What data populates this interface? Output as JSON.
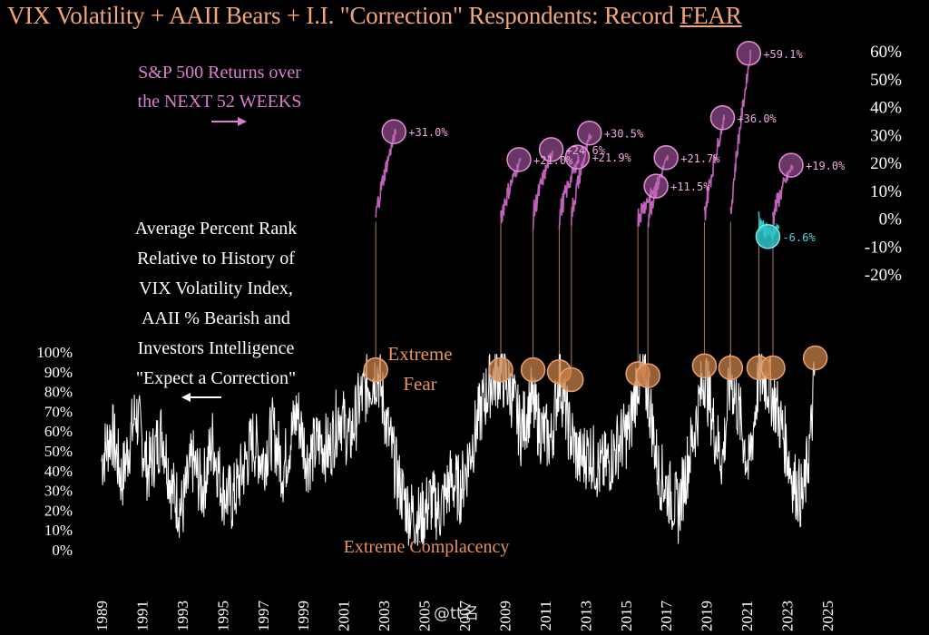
{
  "title": {
    "main": "VIX Volatility + AAII Bears + I.I. \"Correction\" Respondents: Record ",
    "emph": "FEAR"
  },
  "notes": {
    "returns_line1": "S&P 500 Returns over",
    "returns_line2": "the NEXT 52 WEEKS",
    "rank_lines": [
      "Average Percent Rank",
      "Relative to History of",
      "VIX Volatility Index,",
      "AAII % Bearish and",
      "Investors Intelligence",
      "\"Expect a Correction\""
    ],
    "extreme_fear_1": "Extreme",
    "extreme_fear_2": "Fear",
    "extreme_complacency": "Extreme Complacency"
  },
  "watermark": "@tt名",
  "colors": {
    "background": "#000000",
    "rank_line": "#ffffff",
    "returns_line": "#c062b8",
    "negative_return": "#2fc4c9",
    "fear_marker": "#c8804a",
    "label_orange": "#e8935c",
    "label_pink": "#f0a8e0"
  },
  "chart_data": {
    "type": "line",
    "left_axis": {
      "label": "Average Percent Rank",
      "ticks": [
        "100%",
        "90%",
        "80%",
        "70%",
        "60%",
        "50%",
        "40%",
        "30%",
        "20%",
        "10%",
        "0%"
      ],
      "ylim": [
        0,
        100
      ]
    },
    "right_axis": {
      "label": "S&P 500 Returns over the NEXT 52 WEEKS",
      "ticks": [
        "60%",
        "50%",
        "40%",
        "30%",
        "20%",
        "10%",
        "0%",
        "-10%",
        "-20%"
      ],
      "ylim": [
        -20,
        60
      ]
    },
    "x_axis": {
      "ticks": [
        "1989",
        "1991",
        "1993",
        "1995",
        "1997",
        "1999",
        "2001",
        "2003",
        "2005",
        "2007",
        "2009",
        "2011",
        "2013",
        "2015",
        "2017",
        "2019",
        "2021",
        "2023",
        "2025"
      ],
      "xlim": [
        1989,
        2025
      ]
    },
    "extreme_fear_events": [
      {
        "date": 2002.6,
        "rank": 91,
        "return_pct": 31.0,
        "label": "+31.0%"
      },
      {
        "date": 2008.8,
        "rank": 91,
        "return_pct": 21.0,
        "label": "+21.0%"
      },
      {
        "date": 2010.4,
        "rank": 91,
        "return_pct": 24.6,
        "label": "+24.6%"
      },
      {
        "date": 2011.7,
        "rank": 90,
        "return_pct": 21.9,
        "label": "+21.9%"
      },
      {
        "date": 2012.3,
        "rank": 86,
        "return_pct": 30.5,
        "label": "+30.5%"
      },
      {
        "date": 2015.6,
        "rank": 89,
        "return_pct": 11.5,
        "label": "+11.5%"
      },
      {
        "date": 2016.1,
        "rank": 88,
        "return_pct": 21.7,
        "label": "+21.7%"
      },
      {
        "date": 2018.9,
        "rank": 93,
        "return_pct": 36.0,
        "label": "+36.0%"
      },
      {
        "date": 2020.2,
        "rank": 92,
        "return_pct": 59.1,
        "label": "+59.1%"
      },
      {
        "date": 2021.6,
        "rank": 92,
        "return_pct": -6.6,
        "label": "-6.6%"
      },
      {
        "date": 2022.3,
        "rank": 92,
        "return_pct": 19.0,
        "label": "+19.0%"
      },
      {
        "date": 2024.4,
        "rank": 97,
        "return_pct": null,
        "label": ""
      }
    ],
    "rank_series_keypoints": [
      [
        1989.0,
        45
      ],
      [
        1989.5,
        60
      ],
      [
        1990.0,
        35
      ],
      [
        1990.7,
        70
      ],
      [
        1991.3,
        40
      ],
      [
        1992.0,
        60
      ],
      [
        1992.5,
        30
      ],
      [
        1993.0,
        20
      ],
      [
        1993.5,
        45
      ],
      [
        1994.0,
        30
      ],
      [
        1994.5,
        55
      ],
      [
        1995.0,
        30
      ],
      [
        1995.5,
        25
      ],
      [
        1996.0,
        40
      ],
      [
        1996.5,
        55
      ],
      [
        1997.0,
        45
      ],
      [
        1997.5,
        60
      ],
      [
        1998.0,
        40
      ],
      [
        1998.7,
        70
      ],
      [
        1999.2,
        45
      ],
      [
        1999.8,
        55
      ],
      [
        2000.3,
        50
      ],
      [
        2000.8,
        70
      ],
      [
        2001.3,
        55
      ],
      [
        2001.8,
        75
      ],
      [
        2002.3,
        85
      ],
      [
        2002.7,
        90
      ],
      [
        2003.2,
        60
      ],
      [
        2003.7,
        35
      ],
      [
        2004.2,
        20
      ],
      [
        2004.8,
        15
      ],
      [
        2005.3,
        25
      ],
      [
        2005.8,
        20
      ],
      [
        2006.3,
        35
      ],
      [
        2006.8,
        30
      ],
      [
        2007.3,
        50
      ],
      [
        2007.8,
        70
      ],
      [
        2008.3,
        85
      ],
      [
        2008.8,
        90
      ],
      [
        2009.3,
        80
      ],
      [
        2009.8,
        60
      ],
      [
        2010.3,
        75
      ],
      [
        2010.8,
        60
      ],
      [
        2011.3,
        55
      ],
      [
        2011.7,
        88
      ],
      [
        2012.2,
        60
      ],
      [
        2012.7,
        45
      ],
      [
        2013.2,
        50
      ],
      [
        2013.7,
        40
      ],
      [
        2014.2,
        45
      ],
      [
        2014.7,
        55
      ],
      [
        2015.2,
        60
      ],
      [
        2015.6,
        88
      ],
      [
        2016.1,
        80
      ],
      [
        2016.6,
        40
      ],
      [
        2017.1,
        30
      ],
      [
        2017.6,
        20
      ],
      [
        2018.0,
        40
      ],
      [
        2018.5,
        65
      ],
      [
        2018.9,
        90
      ],
      [
        2019.4,
        60
      ],
      [
        2019.8,
        45
      ],
      [
        2020.2,
        88
      ],
      [
        2020.7,
        65
      ],
      [
        2021.1,
        40
      ],
      [
        2021.6,
        88
      ],
      [
        2022.0,
        85
      ],
      [
        2022.4,
        75
      ],
      [
        2022.9,
        55
      ],
      [
        2023.3,
        35
      ],
      [
        2023.8,
        25
      ],
      [
        2024.2,
        60
      ],
      [
        2024.4,
        95
      ]
    ],
    "return_paths": [
      {
        "start": 2002.6,
        "end_value": 31.0
      },
      {
        "start": 2008.8,
        "end_value": 21.0
      },
      {
        "start": 2010.4,
        "end_value": 24.6
      },
      {
        "start": 2011.7,
        "end_value": 21.9
      },
      {
        "start": 2012.3,
        "end_value": 30.5
      },
      {
        "start": 2015.6,
        "end_value": 11.5
      },
      {
        "start": 2016.1,
        "end_value": 21.7
      },
      {
        "start": 2018.9,
        "end_value": 36.0
      },
      {
        "start": 2020.2,
        "end_value": 59.1
      },
      {
        "start": 2021.6,
        "end_value": -6.6
      },
      {
        "start": 2022.3,
        "end_value": 19.0
      }
    ]
  }
}
